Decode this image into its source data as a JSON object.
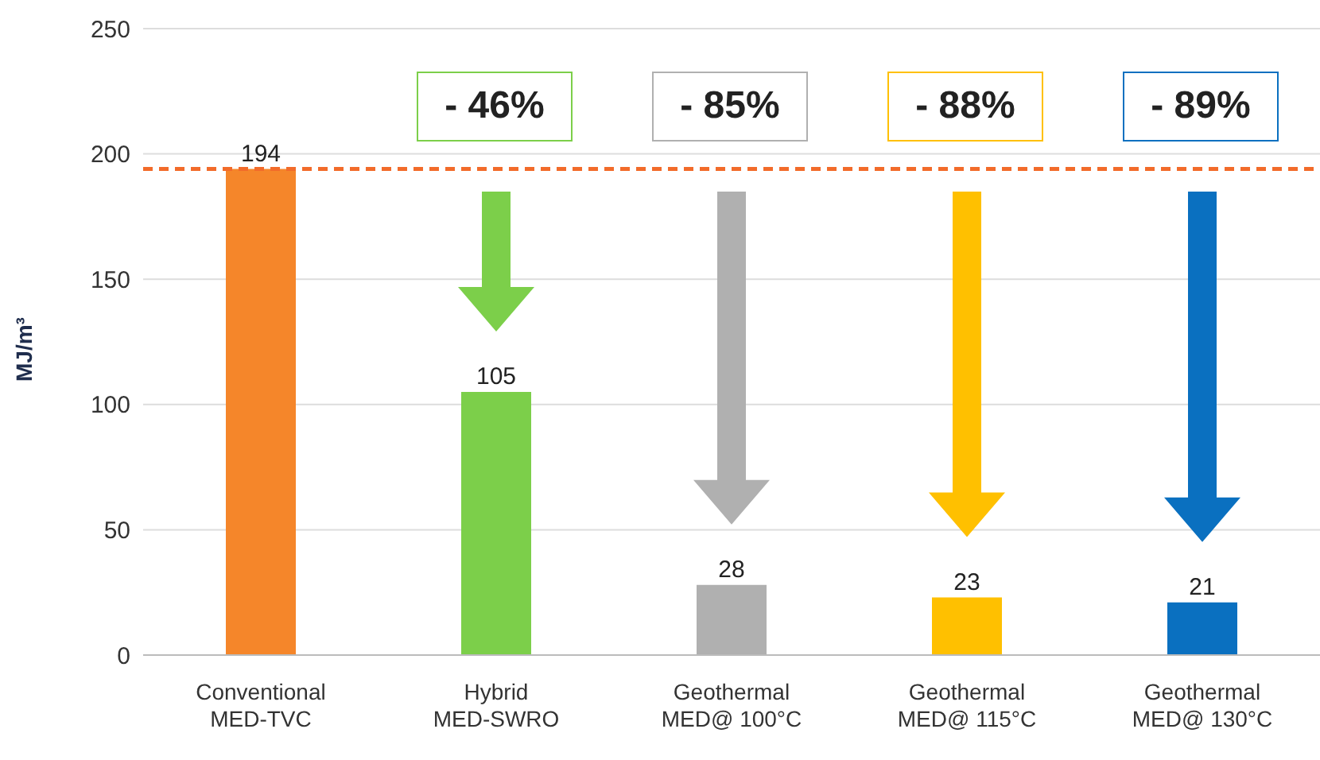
{
  "chart_data": {
    "type": "bar",
    "ylabel": "MJ/m³",
    "categories": [
      "Conventional MED-TVC",
      "Hybrid MED-SWRO",
      "Geothermal MED@ 100°C",
      "Geothermal MED@ 115°C",
      "Geothermal MED@ 130°C"
    ],
    "values": [
      194,
      105,
      28,
      23,
      21
    ],
    "colors": [
      "#f5862a",
      "#7ccf4a",
      "#b0b0b0",
      "#ffc000",
      "#0a70c0"
    ],
    "ylim": [
      0,
      250
    ],
    "yticks": [
      0,
      50,
      100,
      150,
      200,
      250
    ],
    "grid": "y",
    "data_labels": true,
    "ref_lines": [
      {
        "axis": "y",
        "value": 194,
        "color": "#f26b2a",
        "line_style": "dashed"
      }
    ],
    "annotations": [
      "- 46%",
      "- 85%",
      "- 88%",
      "- 89%"
    ]
  }
}
